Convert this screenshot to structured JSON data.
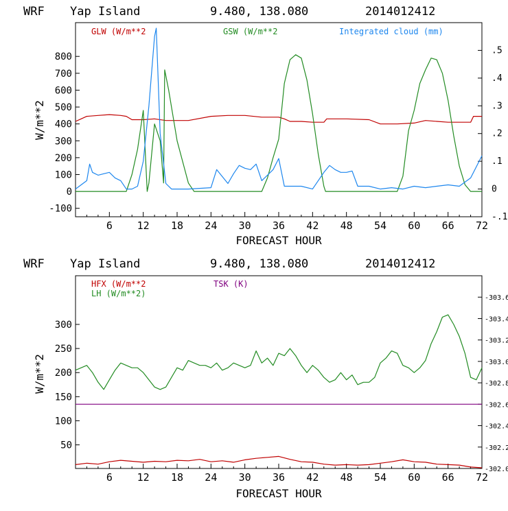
{
  "chart_data": [
    {
      "type": "line",
      "header": {
        "model": "WRF",
        "station": "Yap Island",
        "coords": "9.480, 138.080",
        "run": "2014012412"
      },
      "xlabel": "FORECAST HOUR",
      "ylabel": "W/m**2",
      "xlim": [
        0,
        72
      ],
      "ylim": [
        -150,
        1000
      ],
      "x_ticks": [
        "6",
        "12",
        "18",
        "24",
        "30",
        "36",
        "42",
        "48",
        "54",
        "60",
        "66",
        "72"
      ],
      "y_ticks": [
        "800",
        "700",
        "600",
        "500",
        "400",
        "300",
        "200",
        "100",
        "0",
        "-100"
      ],
      "y2lim": [
        -0.1,
        0.6
      ],
      "y2_ticks": [
        ".5",
        ".4",
        ".3",
        ".2",
        ".1",
        "0",
        "-.1"
      ],
      "series": [
        {
          "name": "GLW (W/m**2",
          "color": "#c00000",
          "axis": "left",
          "x": [
            0,
            1,
            2,
            4,
            6,
            8,
            9,
            10,
            12,
            14,
            16,
            18,
            20,
            24,
            27,
            30,
            33,
            36,
            37,
            38,
            40,
            42,
            44,
            44.5,
            48,
            52,
            54,
            57,
            60,
            62,
            66,
            70,
            70.5,
            72
          ],
          "values": [
            415,
            430,
            445,
            450,
            455,
            450,
            445,
            425,
            425,
            430,
            420,
            420,
            420,
            445,
            450,
            450,
            440,
            440,
            430,
            415,
            415,
            410,
            410,
            430,
            430,
            425,
            400,
            400,
            405,
            420,
            410,
            410,
            445,
            445
          ]
        },
        {
          "name": "GSW (W/m**2",
          "color": "#228b22",
          "axis": "left",
          "x": [
            0,
            9,
            10,
            11,
            12,
            12.7,
            13,
            14,
            15,
            15.6,
            15.8,
            16.5,
            18,
            20,
            21,
            33,
            34,
            35,
            36,
            37,
            38,
            39,
            40,
            41,
            42,
            43,
            44,
            44.3,
            57,
            58,
            59,
            60,
            61,
            62,
            63,
            64,
            65,
            66,
            67,
            68,
            69,
            70,
            72
          ],
          "values": [
            0,
            0,
            100,
            250,
            480,
            0,
            50,
            400,
            300,
            50,
            720,
            600,
            300,
            50,
            0,
            0,
            80,
            200,
            310,
            640,
            780,
            810,
            790,
            660,
            460,
            220,
            30,
            0,
            0,
            90,
            360,
            480,
            640,
            720,
            790,
            780,
            700,
            540,
            330,
            150,
            40,
            0,
            0
          ]
        },
        {
          "name": "Integrated cloud (mm)",
          "color": "#1c86ee",
          "axis": "right",
          "x": [
            0,
            1,
            2,
            2.5,
            3,
            4,
            5,
            6,
            7,
            8,
            9,
            10,
            11,
            12,
            13,
            14,
            14.3,
            15,
            16,
            17,
            18,
            20,
            24,
            25,
            27,
            28,
            29,
            30,
            31,
            32,
            33,
            34,
            35,
            36,
            37,
            38,
            40,
            42,
            44,
            45,
            46,
            47,
            48,
            49,
            50,
            52,
            54,
            56,
            58,
            60,
            62,
            64,
            66,
            68,
            70,
            72
          ],
          "values": [
            0.0,
            0.015,
            0.03,
            0.09,
            0.06,
            0.05,
            0.055,
            0.06,
            0.04,
            0.03,
            0.0,
            0.0,
            0.01,
            0.1,
            0.3,
            0.55,
            0.58,
            0.2,
            0.02,
            0.0,
            0.0,
            0.0,
            0.005,
            0.07,
            0.02,
            0.055,
            0.085,
            0.075,
            0.07,
            0.09,
            0.03,
            0.05,
            0.07,
            0.11,
            0.01,
            0.01,
            0.01,
            0.0,
            0.06,
            0.085,
            0.07,
            0.06,
            0.06,
            0.065,
            0.01,
            0.01,
            0.0,
            0.005,
            0.0,
            0.01,
            0.005,
            0.01,
            0.015,
            0.01,
            0.04,
            0.12
          ]
        }
      ]
    },
    {
      "type": "line",
      "header": {
        "model": "WRF",
        "station": "Yap Island",
        "coords": "9.480, 138.080",
        "run": "2014012412"
      },
      "xlabel": "FORECAST HOUR",
      "ylabel": "W/m**2",
      "xlim": [
        0,
        72
      ],
      "ylim": [
        1,
        401
      ],
      "x_ticks": [
        "6",
        "12",
        "18",
        "24",
        "30",
        "36",
        "42",
        "48",
        "54",
        "60",
        "66",
        "72"
      ],
      "y_ticks": [
        "300",
        "250",
        "200",
        "150",
        "100",
        "50"
      ],
      "y2lim": [
        302.0,
        303.8
      ],
      "y2_ticks": [
        "303.6",
        "303.4",
        "303.2",
        "303.0",
        "302.8",
        "302.6",
        "302.4",
        "302.2",
        "302.0"
      ],
      "series": [
        {
          "name": "HFX (W/m**2",
          "color": "#c00000",
          "axis": "left",
          "x": [
            0,
            2,
            4,
            6,
            8,
            10,
            12,
            14,
            16,
            18,
            20,
            22,
            24,
            26,
            28,
            30,
            32,
            34,
            36,
            38,
            40,
            42,
            44,
            46,
            48,
            50,
            52,
            54,
            56,
            58,
            60,
            62,
            64,
            66,
            68,
            70,
            72
          ],
          "values": [
            9,
            12,
            10,
            15,
            18,
            16,
            14,
            16,
            15,
            18,
            17,
            20,
            15,
            17,
            14,
            19,
            22,
            24,
            26,
            20,
            15,
            14,
            10,
            8,
            9,
            8,
            9,
            12,
            15,
            19,
            15,
            14,
            10,
            9,
            8,
            4,
            2
          ]
        },
        {
          "name": "LH (W/m**2)",
          "color": "#228b22",
          "axis": "left",
          "x": [
            0,
            1,
            2,
            3,
            4,
            5,
            6,
            7,
            8,
            9,
            10,
            11,
            12,
            13,
            14,
            15,
            16,
            17,
            18,
            19,
            20,
            21,
            22,
            23,
            24,
            25,
            26,
            27,
            28,
            29,
            30,
            31,
            32,
            33,
            34,
            35,
            36,
            37,
            38,
            39,
            40,
            41,
            42,
            43,
            44,
            45,
            46,
            47,
            48,
            49,
            50,
            51,
            52,
            53,
            54,
            55,
            56,
            57,
            58,
            59,
            60,
            61,
            62,
            63,
            64,
            65,
            66,
            67,
            68,
            69,
            70,
            71,
            72
          ],
          "values": [
            205,
            210,
            215,
            200,
            180,
            165,
            185,
            205,
            220,
            215,
            210,
            210,
            200,
            185,
            170,
            165,
            170,
            190,
            210,
            205,
            225,
            220,
            215,
            215,
            210,
            220,
            205,
            210,
            220,
            215,
            210,
            215,
            245,
            220,
            230,
            215,
            240,
            235,
            250,
            235,
            215,
            200,
            215,
            205,
            190,
            180,
            185,
            200,
            185,
            195,
            175,
            180,
            180,
            190,
            220,
            230,
            245,
            240,
            215,
            210,
            200,
            210,
            225,
            260,
            285,
            315,
            320,
            300,
            275,
            240,
            190,
            185,
            210
          ]
        },
        {
          "name": "TSK (K)",
          "color": "#800080",
          "axis": "right",
          "x": [
            0,
            72
          ],
          "values": [
            302.6,
            302.6
          ]
        }
      ]
    }
  ]
}
